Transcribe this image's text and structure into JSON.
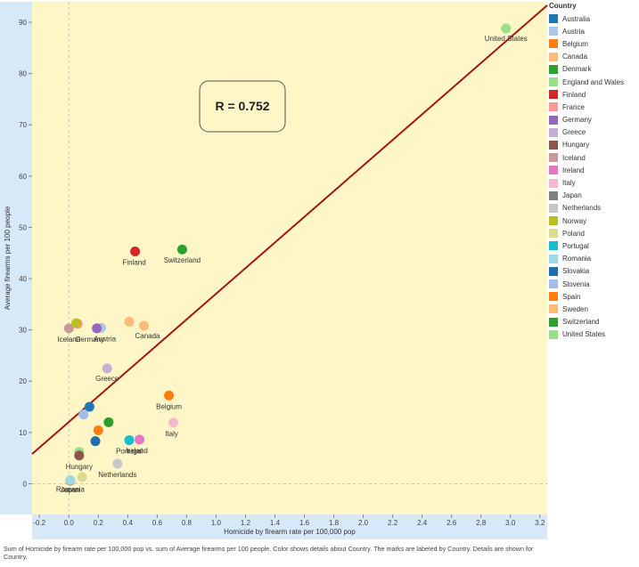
{
  "chart_data": {
    "type": "scatter",
    "xlabel": "Homicide by firearm rate per 100,000 pop",
    "ylabel": "Average firearms per 100 people",
    "xlim": [
      -0.25,
      3.25
    ],
    "ylim": [
      -6,
      94
    ],
    "x_ticks": [
      -0.2,
      0.0,
      0.2,
      0.4,
      0.6,
      0.8,
      1.0,
      1.2,
      1.4,
      1.6,
      1.8,
      2.0,
      2.2,
      2.4,
      2.6,
      2.8,
      3.0,
      3.2
    ],
    "x_tick_labels": [
      "-0.2",
      "0.0",
      "0.2",
      "0.4",
      "0.6",
      "0.8",
      "1.0",
      "1.2",
      "1.4",
      "1.6",
      "1.8",
      "2.0",
      "2.2",
      "2.4",
      "2.6",
      "2.8",
      "3.0",
      "3.2"
    ],
    "y_ticks": [
      0,
      10,
      20,
      30,
      40,
      50,
      60,
      70,
      80,
      90
    ],
    "y_tick_labels": [
      "0",
      "10",
      "20",
      "30",
      "40",
      "50",
      "60",
      "70",
      "80",
      "90"
    ],
    "annotation": "R = 0.752",
    "trend_line": {
      "x": [
        -0.25,
        3.25
      ],
      "y": [
        5.8,
        93.3
      ]
    },
    "legend": {
      "title": "Country",
      "position": "right"
    },
    "points": [
      {
        "country": "Australia",
        "x": 0.14,
        "y": 15.0,
        "label": ""
      },
      {
        "country": "Austria",
        "x": 0.22,
        "y": 30.4,
        "label": "Austria"
      },
      {
        "country": "Belgium",
        "x": 0.68,
        "y": 17.2,
        "label": "Belgium"
      },
      {
        "country": "Canada",
        "x": 0.51,
        "y": 30.8,
        "label": "Canada"
      },
      {
        "country": "Denmark",
        "x": 0.27,
        "y": 12.0,
        "label": ""
      },
      {
        "country": "England and Wales",
        "x": 0.07,
        "y": 6.2,
        "label": ""
      },
      {
        "country": "Finland",
        "x": 0.45,
        "y": 45.3,
        "label": "Finland"
      },
      {
        "country": "France",
        "x": 0.06,
        "y": 31.2,
        "label": ""
      },
      {
        "country": "Germany",
        "x": 0.19,
        "y": 30.3,
        "label": "Germany"
      },
      {
        "country": "Greece",
        "x": 0.26,
        "y": 22.5,
        "label": "Greece"
      },
      {
        "country": "Hungary",
        "x": 0.07,
        "y": 5.5,
        "label": "Hungary"
      },
      {
        "country": "Iceland",
        "x": 0.0,
        "y": 30.3,
        "label": "Iceland"
      },
      {
        "country": "Ireland",
        "x": 0.48,
        "y": 8.6,
        "label": "Ireland"
      },
      {
        "country": "Italy",
        "x": 0.71,
        "y": 11.9,
        "label": "Italy"
      },
      {
        "country": "Japan",
        "x": 0.01,
        "y": 0.6,
        "label": "Japan"
      },
      {
        "country": "Netherlands",
        "x": 0.33,
        "y": 3.9,
        "label": "Netherlands"
      },
      {
        "country": "Norway",
        "x": 0.05,
        "y": 31.3,
        "label": ""
      },
      {
        "country": "Poland",
        "x": 0.09,
        "y": 1.3,
        "label": ""
      },
      {
        "country": "Portugal",
        "x": 0.41,
        "y": 8.5,
        "label": "Portugal"
      },
      {
        "country": "Romania",
        "x": 0.01,
        "y": 0.7,
        "label": "Romania"
      },
      {
        "country": "Slovakia",
        "x": 0.18,
        "y": 8.3,
        "label": ""
      },
      {
        "country": "Slovenia",
        "x": 0.1,
        "y": 13.5,
        "label": ""
      },
      {
        "country": "Spain",
        "x": 0.2,
        "y": 10.4,
        "label": ""
      },
      {
        "country": "Sweden",
        "x": 0.41,
        "y": 31.6,
        "label": ""
      },
      {
        "country": "Switzerland",
        "x": 0.77,
        "y": 45.7,
        "label": "Switzerland"
      },
      {
        "country": "United States",
        "x": 2.97,
        "y": 88.8,
        "label": "United States"
      }
    ]
  },
  "legend_items": [
    {
      "name": "Australia",
      "color": "#1f77b4"
    },
    {
      "name": "Austria",
      "color": "#aec7e8"
    },
    {
      "name": "Belgium",
      "color": "#ff7f0e"
    },
    {
      "name": "Canada",
      "color": "#ffbb78"
    },
    {
      "name": "Denmark",
      "color": "#2ca02c"
    },
    {
      "name": "England and Wales",
      "color": "#98df8a"
    },
    {
      "name": "Finland",
      "color": "#d62728"
    },
    {
      "name": "France",
      "color": "#ff9896"
    },
    {
      "name": "Germany",
      "color": "#9467bd"
    },
    {
      "name": "Greece",
      "color": "#c5b0d5"
    },
    {
      "name": "Hungary",
      "color": "#8c564b"
    },
    {
      "name": "Iceland",
      "color": "#c49c94"
    },
    {
      "name": "Ireland",
      "color": "#e377c2"
    },
    {
      "name": "Italy",
      "color": "#f7b6d2"
    },
    {
      "name": "Japan",
      "color": "#7f7f7f"
    },
    {
      "name": "Netherlands",
      "color": "#c7c7c7"
    },
    {
      "name": "Norway",
      "color": "#bcbd22"
    },
    {
      "name": "Poland",
      "color": "#dbdb8d"
    },
    {
      "name": "Portugal",
      "color": "#17becf"
    },
    {
      "name": "Romania",
      "color": "#9edae5"
    },
    {
      "name": "Slovakia",
      "color": "#1f6fa8"
    },
    {
      "name": "Slovenia",
      "color": "#a6bce8"
    },
    {
      "name": "Spain",
      "color": "#ff7f0e"
    },
    {
      "name": "Sweden",
      "color": "#ffbb78"
    },
    {
      "name": "Switzerland",
      "color": "#2ca02c"
    },
    {
      "name": "United States",
      "color": "#98df8a"
    }
  ],
  "colors": {
    "plot_background": "#fff6c8",
    "axis_band": "#d7e8f8",
    "trend_line": "#a31616",
    "zero_line": "#c9c9b6"
  },
  "caption": "Sum of Homicide by firearm rate per 100,000 pop vs. sum of Average firearms per 100 people.  Color shows details about Country.  The marks are labeled by Country.  Details are shown for Country."
}
